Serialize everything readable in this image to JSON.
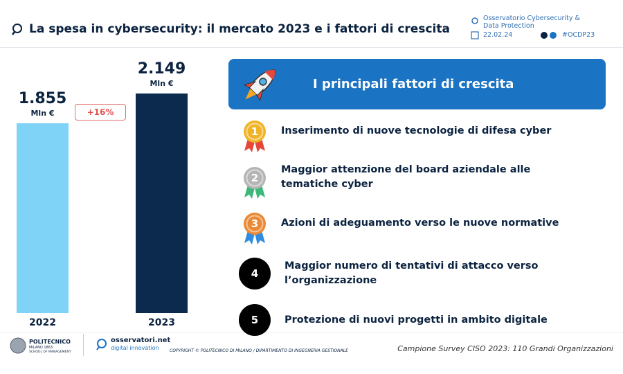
{
  "header": {
    "title": "La spesa in cybersecurity: il mercato 2023 e i fattori di crescita",
    "observatory": "Osservatorio Cybersecurity & Data Protection",
    "date": "22.02.24",
    "hashtag": "#OCDP23"
  },
  "chart_data": {
    "type": "bar",
    "categories": [
      "2022",
      "2023"
    ],
    "values": [
      1855,
      2149
    ],
    "value_labels": [
      "1.855",
      "2.149"
    ],
    "unit": "Mln €",
    "colors": [
      "#7fd3f7",
      "#0c2a4e"
    ],
    "change_label": "+16%"
  },
  "panel": {
    "title": "I principali fattori di crescita",
    "factors": [
      {
        "rank": "1",
        "text": "Inserimento di nuove tecnologie di difesa cyber",
        "color": "#f0b429",
        "medal": true
      },
      {
        "rank": "2",
        "text": "Maggior attenzione del board aziendale alle tematiche cyber",
        "color": "#b5b5b5",
        "medal": true
      },
      {
        "rank": "3",
        "text": "Azioni di adeguamento verso le nuove normative",
        "color": "#ea8a35",
        "medal": true
      },
      {
        "rank": "4",
        "text": "Maggior numero di tentativi di attacco verso l’organizzazione",
        "color": "#000000",
        "medal": false
      },
      {
        "rank": "5",
        "text": "Protezione di nuovi progetti in ambito digitale",
        "color": "#000000",
        "medal": false
      }
    ]
  },
  "footer": {
    "university": "POLITECNICO",
    "university_sub": "MILANO 1863",
    "school": "SCHOOL OF MANAGEMENT",
    "brand": "osservatori.net",
    "brand_tagline": "digital innovation",
    "copyright": "COPYRIGHT © POLITECNICO DI MILANO / DIPARTIMENTO DI INGEGNERIA GESTIONALE",
    "sample": "Campione Survey CISO 2023: 110 Grandi Organizzazioni"
  }
}
